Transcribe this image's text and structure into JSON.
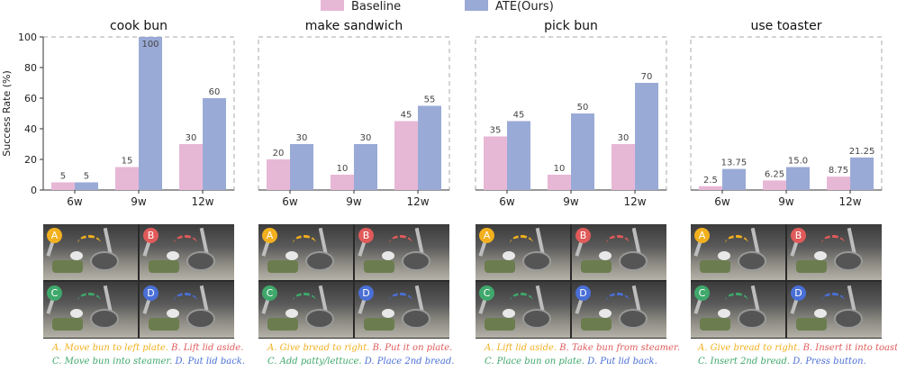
{
  "chart_data": {
    "type": "bar",
    "ylabel": "Success Rate (%)",
    "ylim": [
      0,
      100
    ],
    "yticks": [
      "0",
      "20",
      "40",
      "60",
      "80",
      "100"
    ],
    "categories": [
      "6w",
      "9w",
      "12w"
    ],
    "legend": {
      "position": "top-center",
      "entries": [
        "Baseline",
        "ATE(Ours)"
      ]
    },
    "colors": {
      "baseline": "#e7b7d6",
      "ours": "#9aaad6"
    },
    "panels": [
      {
        "title": "cook bun",
        "baseline": [
          5,
          15,
          30
        ],
        "ours": [
          5,
          100,
          60
        ],
        "baseline_labels": [
          "5",
          "15",
          "30"
        ],
        "ours_labels": [
          "5",
          "100",
          "60"
        ]
      },
      {
        "title": "make sandwich",
        "baseline": [
          20,
          10,
          45
        ],
        "ours": [
          30,
          30,
          55
        ],
        "baseline_labels": [
          "20",
          "10",
          "45"
        ],
        "ours_labels": [
          "30",
          "30",
          "55"
        ]
      },
      {
        "title": "pick bun",
        "baseline": [
          35,
          10,
          30
        ],
        "ours": [
          45,
          50,
          70
        ],
        "baseline_labels": [
          "35",
          "10",
          "30"
        ],
        "ours_labels": [
          "45",
          "50",
          "70"
        ]
      },
      {
        "title": "use toaster",
        "baseline": [
          2.5,
          6.25,
          8.75
        ],
        "ours": [
          13.75,
          15.0,
          21.25
        ],
        "baseline_labels": [
          "2.5",
          "6.25",
          "8.75"
        ],
        "ours_labels": [
          "13.75",
          "15.0",
          "21.25"
        ]
      }
    ]
  },
  "badges": [
    "A",
    "B",
    "C",
    "D"
  ],
  "badge_colors": [
    "#f2b01e",
    "#e05a5a",
    "#3fa86b",
    "#4a6fd6"
  ],
  "captions": [
    {
      "a": "A. Move bun to left plate.",
      "b": "B. Lift lid aside.",
      "c": "C. Move bun into steamer.",
      "d": "D. Put lid back."
    },
    {
      "a": "A. Give bread to right.",
      "b": "B. Put it on plate.",
      "c": "C. Add patty/lettuce.",
      "d": "D. Place 2nd bread."
    },
    {
      "a": "A. Lift lid aside.",
      "b": "B. Take bun from steamer.",
      "c": "C. Place bun on plate.",
      "d": "D. Put lid back."
    },
    {
      "a": "A. Give bread to right.",
      "b": "B. Insert it into toaster.",
      "c": "C. Insert 2nd bread.",
      "d": "D. Press button."
    }
  ]
}
